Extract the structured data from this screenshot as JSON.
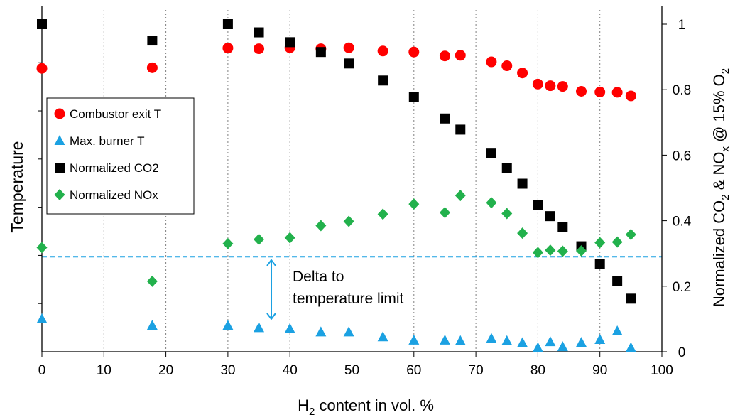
{
  "chart_data": {
    "type": "scatter",
    "xlabel": {
      "prefix": "H",
      "sub": "2",
      "suffix": " content in vol. %"
    },
    "ylabel_left": "Temperature",
    "ylabel_right": {
      "parts": [
        "Normalized CO",
        "2",
        " & NO",
        "x",
        " @ 15% O",
        "2"
      ]
    },
    "x_ticks": [
      "0",
      "10",
      "20",
      "30",
      "40",
      "50",
      "60",
      "70",
      "80",
      "90",
      "100"
    ],
    "y_right_ticks": [
      "0",
      "0.2",
      "0.4",
      "0.6",
      "0.8",
      "1"
    ],
    "xlim": [
      0,
      100
    ],
    "y_right_lim": [
      0,
      1
    ],
    "grid": "vertical dotted",
    "legend_position": "left",
    "reference_line": {
      "y": 0.29,
      "color": "#1ba1e2",
      "style": "dashed"
    },
    "annotation": {
      "lines": [
        "Delta to",
        "temperature limit"
      ],
      "arrow_x": 37,
      "arrow_y": [
        0.28,
        0.1
      ]
    },
    "series": [
      {
        "name": "Combustor exit T",
        "marker": "circle",
        "color": "#ff0000",
        "points": [
          [
            0,
            0.865
          ],
          [
            17.8,
            0.867
          ],
          [
            30,
            0.927
          ],
          [
            35,
            0.925
          ],
          [
            40,
            0.928
          ],
          [
            45,
            0.925
          ],
          [
            49.5,
            0.928
          ],
          [
            55,
            0.918
          ],
          [
            60,
            0.915
          ],
          [
            65,
            0.903
          ],
          [
            67.5,
            0.905
          ],
          [
            72.5,
            0.885
          ],
          [
            75,
            0.873
          ],
          [
            77.5,
            0.851
          ],
          [
            80,
            0.817
          ],
          [
            82,
            0.812
          ],
          [
            84,
            0.81
          ],
          [
            87,
            0.795
          ],
          [
            90,
            0.793
          ],
          [
            92.8,
            0.792
          ],
          [
            95,
            0.781
          ]
        ]
      },
      {
        "name": "Max. burner T",
        "marker": "triangle",
        "color": "#1ba1e2",
        "points": [
          [
            0,
            0.1
          ],
          [
            17.8,
            0.08
          ],
          [
            30,
            0.08
          ],
          [
            35,
            0.073
          ],
          [
            40,
            0.07
          ],
          [
            45,
            0.06
          ],
          [
            49.5,
            0.06
          ],
          [
            55,
            0.045
          ],
          [
            60,
            0.035
          ],
          [
            65,
            0.035
          ],
          [
            67.5,
            0.033
          ],
          [
            72.5,
            0.04
          ],
          [
            75,
            0.033
          ],
          [
            77.5,
            0.027
          ],
          [
            80,
            0.012
          ],
          [
            82,
            0.03
          ],
          [
            84,
            0.015
          ],
          [
            87,
            0.028
          ],
          [
            90,
            0.037
          ],
          [
            92.8,
            0.063
          ],
          [
            95,
            0.012
          ]
        ]
      },
      {
        "name": "Normalized CO2",
        "marker": "square",
        "color": "#000000",
        "points": [
          [
            0,
            1.0
          ],
          [
            17.8,
            0.95
          ],
          [
            30,
            1.0
          ],
          [
            35,
            0.975
          ],
          [
            40,
            0.945
          ],
          [
            45,
            0.915
          ],
          [
            49.5,
            0.88
          ],
          [
            55,
            0.828
          ],
          [
            60,
            0.778
          ],
          [
            65,
            0.712
          ],
          [
            67.5,
            0.678
          ],
          [
            72.5,
            0.607
          ],
          [
            75,
            0.56
          ],
          [
            77.5,
            0.513
          ],
          [
            80,
            0.447
          ],
          [
            82,
            0.414
          ],
          [
            84,
            0.381
          ],
          [
            87,
            0.322
          ],
          [
            90,
            0.267
          ],
          [
            92.8,
            0.215
          ],
          [
            95,
            0.162
          ]
        ]
      },
      {
        "name": "Normalized NOx",
        "marker": "diamond",
        "color": "#22b14c",
        "points": [
          [
            0,
            0.318
          ],
          [
            17.8,
            0.215
          ],
          [
            30,
            0.33
          ],
          [
            35,
            0.343
          ],
          [
            40,
            0.348
          ],
          [
            45,
            0.385
          ],
          [
            49.5,
            0.398
          ],
          [
            55,
            0.42
          ],
          [
            60,
            0.451
          ],
          [
            65,
            0.425
          ],
          [
            67.5,
            0.477
          ],
          [
            72.5,
            0.455
          ],
          [
            75,
            0.422
          ],
          [
            77.5,
            0.362
          ],
          [
            80,
            0.303
          ],
          [
            82,
            0.31
          ],
          [
            84,
            0.307
          ],
          [
            87,
            0.308
          ],
          [
            90,
            0.333
          ],
          [
            92.8,
            0.335
          ],
          [
            95,
            0.358
          ]
        ]
      }
    ]
  }
}
